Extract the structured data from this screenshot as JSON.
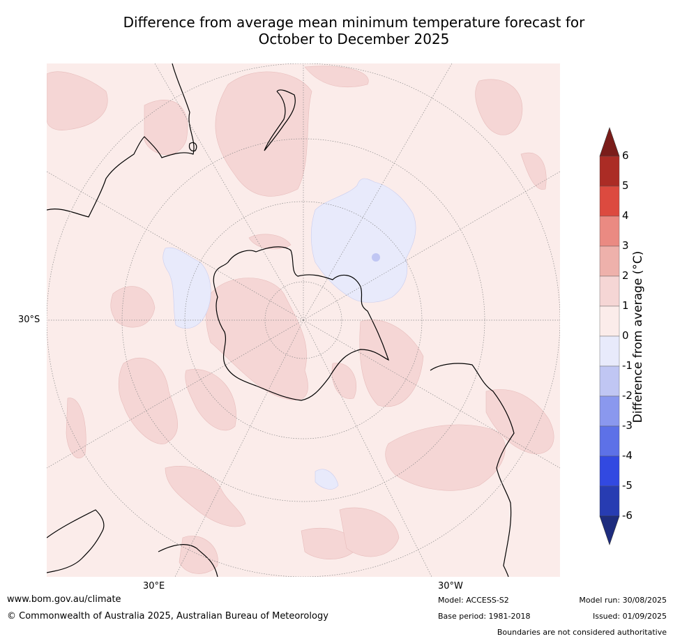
{
  "title_line1": "Difference from average mean minimum temperature forecast for",
  "title_line2": "October to December 2025",
  "map": {
    "projection": "south-polar",
    "lat_label": "30°S",
    "lon_labels": [
      "30°E",
      "30°W"
    ],
    "ocean_color": "#fbecea",
    "warm_color": "#f5d6d5",
    "cool_color": "#e8eafb",
    "coast_color": "#000000",
    "grid_color": "#888888"
  },
  "colorbar": {
    "title": "Difference from average (°C)",
    "ticks": [
      "6",
      "5",
      "4",
      "3",
      "2",
      "1",
      "0",
      "-1",
      "-2",
      "-3",
      "-4",
      "-5",
      "-6"
    ],
    "colors": [
      "#7a1d1a",
      "#ab2c25",
      "#dc4a3f",
      "#ea8a82",
      "#eeb1ab",
      "#f5d6d5",
      "#fbecea",
      "#e8eafb",
      "#c0c6f3",
      "#8a98ee",
      "#5d71e7",
      "#3249e1",
      "#273cb2",
      "#1e2c7e"
    ]
  },
  "footer": {
    "url": "www.bom.gov.au/climate",
    "copyright": "© Commonwealth of Australia 2025, Australian Bureau of Meteorology",
    "model": "Model: ACCESS-S2",
    "base_period": "Base period: 1981-2018",
    "model_run": "Model run: 30/08/2025",
    "issued": "Issued: 01/09/2025",
    "disclaimer": "Boundaries are not considered authoritative"
  }
}
